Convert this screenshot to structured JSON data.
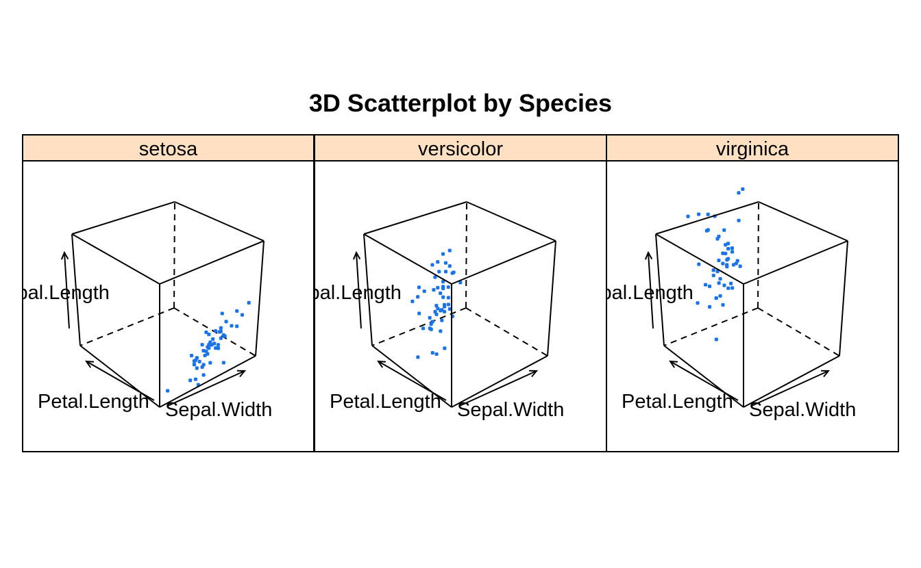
{
  "chart_data": {
    "type": "scatter",
    "title": "3D Scatterplot by Species",
    "colors": {
      "strip": "#ffe0c2",
      "points": "#1a73e8"
    },
    "axes": {
      "z": "Sepal.Length",
      "x": "Petal.Length",
      "y": "Sepal.Width"
    },
    "panels": [
      {
        "name": "setosa",
        "points": [
          {
            "x": 1.4,
            "y": 3.5,
            "z": 5.1
          },
          {
            "x": 1.4,
            "y": 3.0,
            "z": 4.9
          },
          {
            "x": 1.3,
            "y": 3.2,
            "z": 4.7
          },
          {
            "x": 1.5,
            "y": 3.1,
            "z": 4.6
          },
          {
            "x": 1.4,
            "y": 3.6,
            "z": 5.0
          },
          {
            "x": 1.7,
            "y": 3.9,
            "z": 5.4
          },
          {
            "x": 1.4,
            "y": 3.4,
            "z": 4.6
          },
          {
            "x": 1.5,
            "y": 3.4,
            "z": 5.0
          },
          {
            "x": 1.4,
            "y": 2.9,
            "z": 4.4
          },
          {
            "x": 1.5,
            "y": 3.1,
            "z": 4.9
          },
          {
            "x": 1.5,
            "y": 3.7,
            "z": 5.4
          },
          {
            "x": 1.6,
            "y": 3.4,
            "z": 4.8
          },
          {
            "x": 1.4,
            "y": 3.0,
            "z": 4.8
          },
          {
            "x": 1.1,
            "y": 3.0,
            "z": 4.3
          },
          {
            "x": 1.2,
            "y": 4.0,
            "z": 5.8
          },
          {
            "x": 1.5,
            "y": 4.4,
            "z": 5.7
          },
          {
            "x": 1.3,
            "y": 3.9,
            "z": 5.4
          },
          {
            "x": 1.4,
            "y": 3.5,
            "z": 5.1
          },
          {
            "x": 1.7,
            "y": 3.8,
            "z": 5.7
          },
          {
            "x": 1.5,
            "y": 3.8,
            "z": 5.1
          },
          {
            "x": 1.7,
            "y": 3.4,
            "z": 5.4
          },
          {
            "x": 1.5,
            "y": 3.7,
            "z": 5.1
          },
          {
            "x": 1.0,
            "y": 3.6,
            "z": 4.6
          },
          {
            "x": 1.7,
            "y": 3.3,
            "z": 5.1
          },
          {
            "x": 1.9,
            "y": 3.4,
            "z": 4.8
          },
          {
            "x": 1.6,
            "y": 3.0,
            "z": 5.0
          },
          {
            "x": 1.6,
            "y": 3.4,
            "z": 5.0
          },
          {
            "x": 1.5,
            "y": 3.5,
            "z": 5.2
          },
          {
            "x": 1.4,
            "y": 3.4,
            "z": 5.2
          },
          {
            "x": 1.6,
            "y": 3.2,
            "z": 4.7
          },
          {
            "x": 1.6,
            "y": 3.1,
            "z": 4.8
          },
          {
            "x": 1.5,
            "y": 3.4,
            "z": 5.4
          },
          {
            "x": 1.5,
            "y": 4.1,
            "z": 5.2
          },
          {
            "x": 1.4,
            "y": 4.2,
            "z": 5.5
          },
          {
            "x": 1.5,
            "y": 3.1,
            "z": 4.9
          },
          {
            "x": 1.2,
            "y": 3.2,
            "z": 5.0
          },
          {
            "x": 1.3,
            "y": 3.5,
            "z": 5.5
          },
          {
            "x": 1.4,
            "y": 3.6,
            "z": 4.9
          },
          {
            "x": 1.3,
            "y": 3.0,
            "z": 4.4
          },
          {
            "x": 1.5,
            "y": 3.4,
            "z": 5.1
          },
          {
            "x": 1.3,
            "y": 3.5,
            "z": 5.0
          },
          {
            "x": 1.3,
            "y": 2.3,
            "z": 4.5
          },
          {
            "x": 1.3,
            "y": 3.2,
            "z": 4.4
          },
          {
            "x": 1.6,
            "y": 3.5,
            "z": 5.0
          },
          {
            "x": 1.9,
            "y": 3.8,
            "z": 5.1
          },
          {
            "x": 1.4,
            "y": 3.0,
            "z": 4.8
          },
          {
            "x": 1.6,
            "y": 3.8,
            "z": 5.1
          },
          {
            "x": 1.4,
            "y": 3.2,
            "z": 4.6
          },
          {
            "x": 1.5,
            "y": 3.7,
            "z": 5.3
          },
          {
            "x": 1.4,
            "y": 3.3,
            "z": 5.0
          }
        ]
      },
      {
        "name": "versicolor",
        "points": [
          {
            "x": 4.7,
            "y": 3.2,
            "z": 7.0
          },
          {
            "x": 4.5,
            "y": 3.2,
            "z": 6.4
          },
          {
            "x": 4.9,
            "y": 3.1,
            "z": 6.9
          },
          {
            "x": 4.0,
            "y": 2.3,
            "z": 5.5
          },
          {
            "x": 4.6,
            "y": 2.8,
            "z": 6.5
          },
          {
            "x": 4.5,
            "y": 2.8,
            "z": 5.7
          },
          {
            "x": 4.7,
            "y": 3.3,
            "z": 6.3
          },
          {
            "x": 3.3,
            "y": 2.4,
            "z": 4.9
          },
          {
            "x": 4.6,
            "y": 2.9,
            "z": 6.6
          },
          {
            "x": 3.9,
            "y": 2.7,
            "z": 5.2
          },
          {
            "x": 3.5,
            "y": 2.0,
            "z": 5.0
          },
          {
            "x": 4.2,
            "y": 3.0,
            "z": 5.9
          },
          {
            "x": 4.0,
            "y": 2.2,
            "z": 6.0
          },
          {
            "x": 4.7,
            "y": 2.9,
            "z": 6.1
          },
          {
            "x": 3.6,
            "y": 2.9,
            "z": 5.6
          },
          {
            "x": 4.4,
            "y": 3.1,
            "z": 6.7
          },
          {
            "x": 4.5,
            "y": 3.0,
            "z": 5.6
          },
          {
            "x": 4.1,
            "y": 2.7,
            "z": 5.8
          },
          {
            "x": 4.5,
            "y": 2.2,
            "z": 6.2
          },
          {
            "x": 3.9,
            "y": 2.5,
            "z": 5.6
          },
          {
            "x": 4.8,
            "y": 3.2,
            "z": 5.9
          },
          {
            "x": 4.0,
            "y": 2.8,
            "z": 6.1
          },
          {
            "x": 4.9,
            "y": 2.5,
            "z": 6.3
          },
          {
            "x": 4.7,
            "y": 2.8,
            "z": 6.1
          },
          {
            "x": 4.3,
            "y": 2.9,
            "z": 6.4
          },
          {
            "x": 4.4,
            "y": 3.0,
            "z": 6.6
          },
          {
            "x": 4.8,
            "y": 2.8,
            "z": 6.8
          },
          {
            "x": 5.0,
            "y": 3.0,
            "z": 6.7
          },
          {
            "x": 4.5,
            "y": 2.9,
            "z": 6.0
          },
          {
            "x": 3.5,
            "y": 2.6,
            "z": 5.7
          },
          {
            "x": 3.8,
            "y": 2.4,
            "z": 5.5
          },
          {
            "x": 3.7,
            "y": 2.4,
            "z": 5.5
          },
          {
            "x": 3.9,
            "y": 2.7,
            "z": 5.8
          },
          {
            "x": 5.1,
            "y": 2.7,
            "z": 6.0
          },
          {
            "x": 4.5,
            "y": 3.0,
            "z": 5.4
          },
          {
            "x": 4.5,
            "y": 3.4,
            "z": 6.0
          },
          {
            "x": 4.7,
            "y": 3.1,
            "z": 6.7
          },
          {
            "x": 4.4,
            "y": 2.3,
            "z": 6.3
          },
          {
            "x": 4.1,
            "y": 3.0,
            "z": 5.6
          },
          {
            "x": 4.0,
            "y": 2.5,
            "z": 5.5
          },
          {
            "x": 4.4,
            "y": 2.6,
            "z": 5.5
          },
          {
            "x": 4.6,
            "y": 3.0,
            "z": 6.1
          },
          {
            "x": 4.0,
            "y": 2.6,
            "z": 5.8
          },
          {
            "x": 3.3,
            "y": 2.3,
            "z": 5.0
          },
          {
            "x": 4.2,
            "y": 2.7,
            "z": 5.6
          },
          {
            "x": 4.2,
            "y": 3.0,
            "z": 5.7
          },
          {
            "x": 4.2,
            "y": 2.9,
            "z": 5.7
          },
          {
            "x": 4.3,
            "y": 2.9,
            "z": 6.2
          },
          {
            "x": 3.0,
            "y": 2.5,
            "z": 5.1
          },
          {
            "x": 4.1,
            "y": 2.8,
            "z": 5.7
          }
        ]
      },
      {
        "name": "virginica",
        "points": [
          {
            "x": 6.0,
            "y": 3.3,
            "z": 6.3
          },
          {
            "x": 5.1,
            "y": 2.7,
            "z": 5.8
          },
          {
            "x": 5.9,
            "y": 3.0,
            "z": 7.1
          },
          {
            "x": 5.6,
            "y": 2.9,
            "z": 6.3
          },
          {
            "x": 5.8,
            "y": 3.0,
            "z": 6.5
          },
          {
            "x": 6.6,
            "y": 3.0,
            "z": 7.6
          },
          {
            "x": 4.5,
            "y": 2.5,
            "z": 4.9
          },
          {
            "x": 6.3,
            "y": 2.9,
            "z": 7.3
          },
          {
            "x": 5.8,
            "y": 2.5,
            "z": 6.7
          },
          {
            "x": 6.1,
            "y": 3.6,
            "z": 7.2
          },
          {
            "x": 5.1,
            "y": 3.2,
            "z": 6.5
          },
          {
            "x": 5.3,
            "y": 2.7,
            "z": 6.4
          },
          {
            "x": 5.5,
            "y": 3.0,
            "z": 6.8
          },
          {
            "x": 5.0,
            "y": 2.5,
            "z": 5.7
          },
          {
            "x": 5.1,
            "y": 2.8,
            "z": 5.8
          },
          {
            "x": 5.3,
            "y": 3.2,
            "z": 6.4
          },
          {
            "x": 5.5,
            "y": 3.0,
            "z": 6.5
          },
          {
            "x": 6.7,
            "y": 3.8,
            "z": 7.7
          },
          {
            "x": 6.9,
            "y": 2.6,
            "z": 7.7
          },
          {
            "x": 5.0,
            "y": 2.2,
            "z": 6.0
          },
          {
            "x": 5.7,
            "y": 3.2,
            "z": 6.9
          },
          {
            "x": 4.9,
            "y": 2.8,
            "z": 5.6
          },
          {
            "x": 6.7,
            "y": 2.8,
            "z": 7.7
          },
          {
            "x": 4.9,
            "y": 2.7,
            "z": 6.3
          },
          {
            "x": 5.7,
            "y": 3.3,
            "z": 6.7
          },
          {
            "x": 6.0,
            "y": 3.2,
            "z": 7.2
          },
          {
            "x": 4.8,
            "y": 2.8,
            "z": 6.2
          },
          {
            "x": 4.9,
            "y": 3.0,
            "z": 6.1
          },
          {
            "x": 5.6,
            "y": 2.8,
            "z": 6.4
          },
          {
            "x": 5.8,
            "y": 3.0,
            "z": 7.2
          },
          {
            "x": 6.1,
            "y": 2.8,
            "z": 7.4
          },
          {
            "x": 6.4,
            "y": 3.8,
            "z": 7.9
          },
          {
            "x": 5.6,
            "y": 2.8,
            "z": 6.4
          },
          {
            "x": 5.1,
            "y": 2.8,
            "z": 6.3
          },
          {
            "x": 5.6,
            "y": 2.6,
            "z": 6.1
          },
          {
            "x": 6.1,
            "y": 3.0,
            "z": 7.7
          },
          {
            "x": 5.6,
            "y": 3.4,
            "z": 6.3
          },
          {
            "x": 5.5,
            "y": 3.1,
            "z": 6.4
          },
          {
            "x": 4.8,
            "y": 3.0,
            "z": 6.0
          },
          {
            "x": 5.4,
            "y": 3.1,
            "z": 6.9
          },
          {
            "x": 5.6,
            "y": 3.1,
            "z": 6.7
          },
          {
            "x": 5.1,
            "y": 3.1,
            "z": 6.9
          },
          {
            "x": 5.1,
            "y": 2.7,
            "z": 5.8
          },
          {
            "x": 5.9,
            "y": 3.2,
            "z": 6.8
          },
          {
            "x": 5.7,
            "y": 3.3,
            "z": 6.7
          },
          {
            "x": 5.2,
            "y": 3.0,
            "z": 6.7
          },
          {
            "x": 5.0,
            "y": 2.5,
            "z": 6.3
          },
          {
            "x": 5.2,
            "y": 3.0,
            "z": 6.5
          },
          {
            "x": 5.4,
            "y": 3.4,
            "z": 6.2
          },
          {
            "x": 5.1,
            "y": 3.0,
            "z": 5.9
          }
        ]
      }
    ]
  }
}
